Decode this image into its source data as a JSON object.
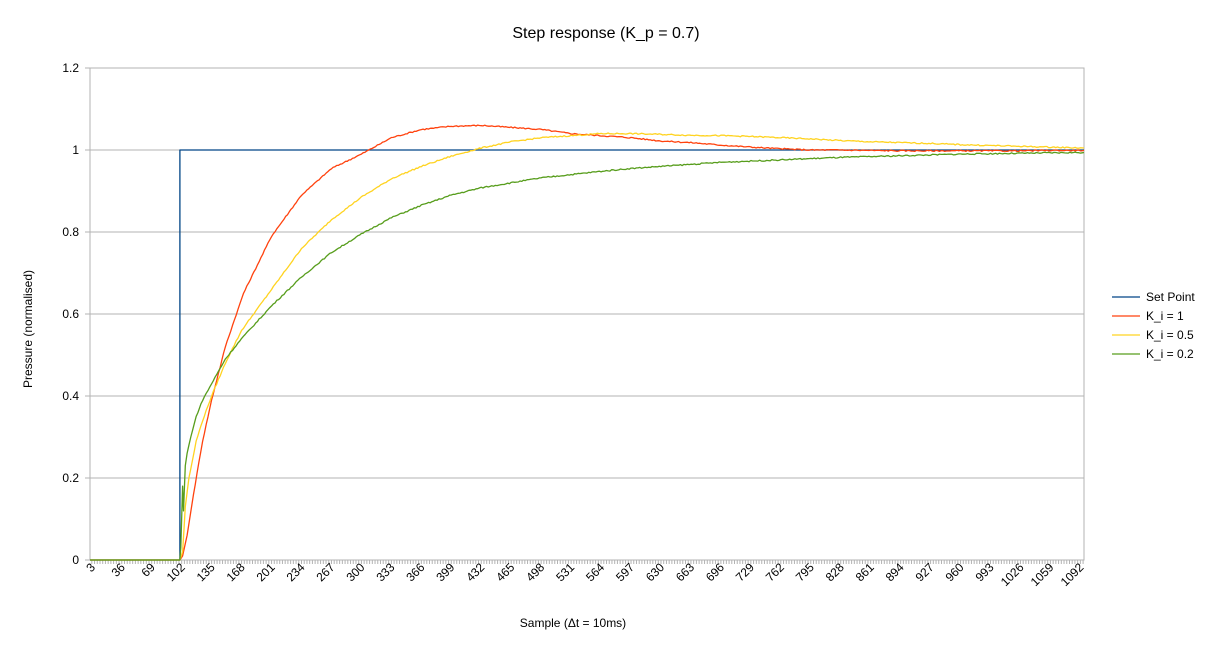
{
  "chart_data": {
    "type": "line",
    "title": "Step response (K_p = 0.7)",
    "xlabel": "Sample (Δt = 10ms)",
    "ylabel": "Pressure (normalised)",
    "xlim": [
      1,
      1096
    ],
    "ylim": [
      0,
      1.2
    ],
    "y_ticks": [
      0,
      0.2,
      0.4,
      0.6,
      0.8,
      1,
      1.2
    ],
    "y_tick_labels": [
      "0",
      "0.2",
      "0.4",
      "0.6",
      "0.8",
      "1",
      "1.2"
    ],
    "x_tick_labels": [
      3,
      36,
      69,
      102,
      135,
      168,
      201,
      234,
      267,
      300,
      333,
      366,
      399,
      432,
      465,
      498,
      531,
      564,
      597,
      630,
      663,
      696,
      729,
      762,
      795,
      828,
      861,
      894,
      927,
      960,
      993,
      1026,
      1059,
      1092
    ],
    "grid": "horizontal",
    "legend_position": "right",
    "series": [
      {
        "name": "Set Point",
        "color": "#004586",
        "x": [
          1,
          100,
          100,
          1096
        ],
        "y": [
          0,
          0,
          1,
          1
        ]
      },
      {
        "name": "K_i = 1",
        "color": "#ff420e",
        "x": [
          1,
          100,
          103,
          108,
          115,
          125,
          135,
          150,
          170,
          201,
          234,
          267,
          300,
          333,
          366,
          399,
          432,
          465,
          498,
          531,
          564,
          597,
          630,
          663,
          696,
          729,
          762,
          795,
          828,
          861,
          894,
          927,
          960,
          993,
          1026,
          1059,
          1096
        ],
        "y": [
          0,
          0,
          0.01,
          0.06,
          0.16,
          0.29,
          0.39,
          0.52,
          0.65,
          0.79,
          0.89,
          0.955,
          0.99,
          1.03,
          1.05,
          1.058,
          1.06,
          1.055,
          1.05,
          1.04,
          1.035,
          1.03,
          1.022,
          1.018,
          1.012,
          1.007,
          1.003,
          1.0,
          1.0,
          0.999,
          0.998,
          0.998,
          0.998,
          0.998,
          0.998,
          0.999,
          0.999
        ]
      },
      {
        "name": "K_i = 0.5",
        "color": "#ffd320",
        "x": [
          1,
          100,
          103,
          106,
          110,
          118,
          125,
          135,
          150,
          168,
          201,
          234,
          267,
          300,
          333,
          366,
          399,
          432,
          465,
          498,
          531,
          564,
          597,
          630,
          663,
          696,
          729,
          762,
          795,
          828,
          861,
          894,
          927,
          960,
          993,
          1026,
          1059,
          1096
        ],
        "y": [
          0,
          0,
          0.02,
          0.13,
          0.2,
          0.29,
          0.34,
          0.4,
          0.48,
          0.56,
          0.66,
          0.76,
          0.83,
          0.885,
          0.93,
          0.96,
          0.985,
          1.005,
          1.02,
          1.03,
          1.035,
          1.04,
          1.04,
          1.038,
          1.036,
          1.035,
          1.033,
          1.03,
          1.027,
          1.023,
          1.02,
          1.018,
          1.016,
          1.013,
          1.011,
          1.009,
          1.007,
          1.005
        ]
      },
      {
        "name": "K_i = 0.2",
        "color": "#579d1c",
        "x": [
          1,
          100,
          101,
          103,
          104,
          106,
          108,
          112,
          118,
          125,
          135,
          150,
          168,
          201,
          234,
          267,
          300,
          333,
          366,
          399,
          432,
          465,
          498,
          531,
          564,
          597,
          630,
          663,
          696,
          729,
          762,
          795,
          828,
          861,
          894,
          927,
          960,
          993,
          1026,
          1059,
          1096
        ],
        "y": [
          0,
          0,
          0.03,
          0.18,
          0.12,
          0.23,
          0.26,
          0.3,
          0.35,
          0.39,
          0.43,
          0.49,
          0.54,
          0.62,
          0.69,
          0.75,
          0.795,
          0.835,
          0.865,
          0.89,
          0.908,
          0.92,
          0.932,
          0.94,
          0.948,
          0.955,
          0.96,
          0.965,
          0.97,
          0.973,
          0.976,
          0.979,
          0.982,
          0.984,
          0.986,
          0.988,
          0.99,
          0.991,
          0.992,
          0.993,
          0.994
        ]
      }
    ]
  }
}
